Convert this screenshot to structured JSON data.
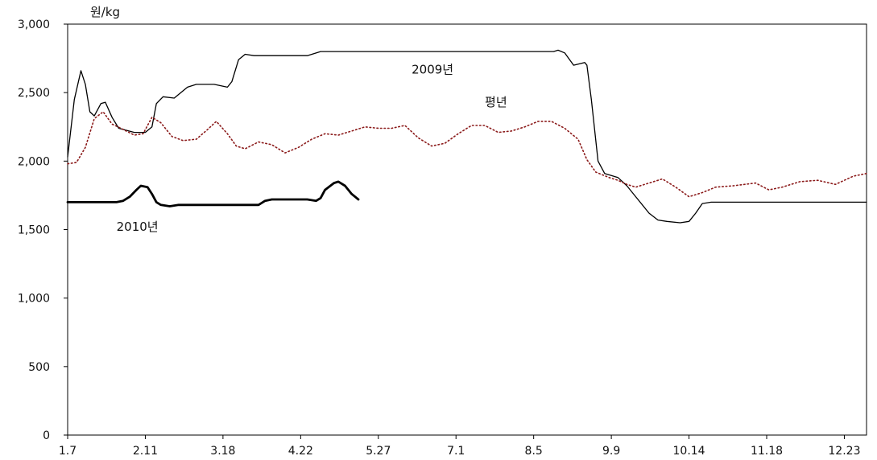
{
  "chart_data": {
    "type": "line",
    "ylabel": "원/kg",
    "ylim": [
      0,
      3000
    ],
    "yticks": [
      0,
      500,
      1000,
      1500,
      2000,
      2500,
      3000
    ],
    "ytick_labels": [
      "0",
      "500",
      "1,000",
      "1,500",
      "2,000",
      "2,500",
      "3,000"
    ],
    "x_domain": [
      0,
      360
    ],
    "xticks": [
      {
        "label": "1.7",
        "x": 0
      },
      {
        "label": "2.11",
        "x": 35
      },
      {
        "label": "3.18",
        "x": 70
      },
      {
        "label": "4.22",
        "x": 105
      },
      {
        "label": "5.27",
        "x": 140
      },
      {
        "label": "7.1",
        "x": 175
      },
      {
        "label": "8.5",
        "x": 210
      },
      {
        "label": "9.9",
        "x": 245
      },
      {
        "label": "10.14",
        "x": 280
      },
      {
        "label": "11.18",
        "x": 315
      },
      {
        "label": "12.23",
        "x": 350
      }
    ],
    "grid": false,
    "series": [
      {
        "name": "2009년",
        "color": "#000000",
        "style": "solid-thin",
        "points": [
          [
            0,
            2030
          ],
          [
            3,
            2450
          ],
          [
            6,
            2660
          ],
          [
            8,
            2560
          ],
          [
            10,
            2360
          ],
          [
            12,
            2330
          ],
          [
            15,
            2420
          ],
          [
            17,
            2430
          ],
          [
            20,
            2320
          ],
          [
            23,
            2240
          ],
          [
            30,
            2210
          ],
          [
            35,
            2210
          ],
          [
            38,
            2250
          ],
          [
            40,
            2420
          ],
          [
            43,
            2470
          ],
          [
            48,
            2460
          ],
          [
            54,
            2540
          ],
          [
            58,
            2560
          ],
          [
            66,
            2560
          ],
          [
            72,
            2540
          ],
          [
            74,
            2580
          ],
          [
            77,
            2740
          ],
          [
            80,
            2780
          ],
          [
            84,
            2770
          ],
          [
            100,
            2770
          ],
          [
            108,
            2770
          ],
          [
            114,
            2800
          ],
          [
            210,
            2800
          ],
          [
            219,
            2800
          ],
          [
            221,
            2810
          ],
          [
            224,
            2790
          ],
          [
            228,
            2700
          ],
          [
            233,
            2720
          ],
          [
            234,
            2700
          ],
          [
            236,
            2450
          ],
          [
            239,
            2000
          ],
          [
            242,
            1910
          ],
          [
            248,
            1880
          ],
          [
            252,
            1820
          ],
          [
            256,
            1740
          ],
          [
            262,
            1620
          ],
          [
            266,
            1570
          ],
          [
            270,
            1560
          ],
          [
            276,
            1550
          ],
          [
            280,
            1560
          ],
          [
            283,
            1620
          ],
          [
            286,
            1690
          ],
          [
            290,
            1700
          ],
          [
            300,
            1700
          ],
          [
            330,
            1700
          ],
          [
            360,
            1700
          ]
        ]
      },
      {
        "name": "평년",
        "color": "#8b1a1a",
        "style": "dotted",
        "points": [
          [
            0,
            1980
          ],
          [
            4,
            1990
          ],
          [
            8,
            2100
          ],
          [
            12,
            2310
          ],
          [
            16,
            2360
          ],
          [
            20,
            2270
          ],
          [
            24,
            2240
          ],
          [
            30,
            2190
          ],
          [
            34,
            2200
          ],
          [
            38,
            2320
          ],
          [
            42,
            2280
          ],
          [
            47,
            2180
          ],
          [
            52,
            2150
          ],
          [
            58,
            2160
          ],
          [
            63,
            2230
          ],
          [
            67,
            2290
          ],
          [
            72,
            2200
          ],
          [
            76,
            2110
          ],
          [
            80,
            2090
          ],
          [
            86,
            2140
          ],
          [
            92,
            2120
          ],
          [
            98,
            2060
          ],
          [
            104,
            2100
          ],
          [
            110,
            2160
          ],
          [
            116,
            2200
          ],
          [
            122,
            2190
          ],
          [
            128,
            2220
          ],
          [
            134,
            2250
          ],
          [
            140,
            2240
          ],
          [
            146,
            2240
          ],
          [
            152,
            2260
          ],
          [
            158,
            2170
          ],
          [
            164,
            2110
          ],
          [
            170,
            2130
          ],
          [
            176,
            2200
          ],
          [
            182,
            2260
          ],
          [
            188,
            2260
          ],
          [
            194,
            2210
          ],
          [
            200,
            2220
          ],
          [
            206,
            2250
          ],
          [
            212,
            2290
          ],
          [
            218,
            2290
          ],
          [
            224,
            2240
          ],
          [
            230,
            2160
          ],
          [
            234,
            2010
          ],
          [
            238,
            1920
          ],
          [
            244,
            1880
          ],
          [
            248,
            1860
          ],
          [
            252,
            1830
          ],
          [
            256,
            1810
          ],
          [
            262,
            1840
          ],
          [
            268,
            1870
          ],
          [
            274,
            1810
          ],
          [
            280,
            1740
          ],
          [
            286,
            1770
          ],
          [
            292,
            1810
          ],
          [
            300,
            1820
          ],
          [
            310,
            1840
          ],
          [
            316,
            1790
          ],
          [
            322,
            1810
          ],
          [
            330,
            1850
          ],
          [
            338,
            1860
          ],
          [
            346,
            1830
          ],
          [
            354,
            1890
          ],
          [
            360,
            1910
          ]
        ]
      },
      {
        "name": "2010년",
        "color": "#000000",
        "style": "solid-thick",
        "points": [
          [
            0,
            1700
          ],
          [
            12,
            1700
          ],
          [
            22,
            1700
          ],
          [
            25,
            1710
          ],
          [
            28,
            1740
          ],
          [
            31,
            1790
          ],
          [
            33,
            1820
          ],
          [
            36,
            1810
          ],
          [
            38,
            1760
          ],
          [
            40,
            1700
          ],
          [
            42,
            1680
          ],
          [
            46,
            1670
          ],
          [
            50,
            1680
          ],
          [
            60,
            1680
          ],
          [
            70,
            1680
          ],
          [
            80,
            1680
          ],
          [
            86,
            1680
          ],
          [
            89,
            1710
          ],
          [
            92,
            1720
          ],
          [
            100,
            1720
          ],
          [
            108,
            1720
          ],
          [
            112,
            1710
          ],
          [
            114,
            1730
          ],
          [
            116,
            1790
          ],
          [
            120,
            1840
          ],
          [
            122,
            1850
          ],
          [
            125,
            1820
          ],
          [
            128,
            1760
          ],
          [
            131,
            1720
          ]
        ]
      }
    ],
    "annotations": [
      {
        "text": "2009년",
        "series": "2009년",
        "x": 155,
        "y": 2640
      },
      {
        "text": "평년",
        "series": "평년",
        "x": 188,
        "y": 2400
      },
      {
        "text": "2010년",
        "series": "2010년",
        "x": 22,
        "y": 1490
      }
    ]
  }
}
